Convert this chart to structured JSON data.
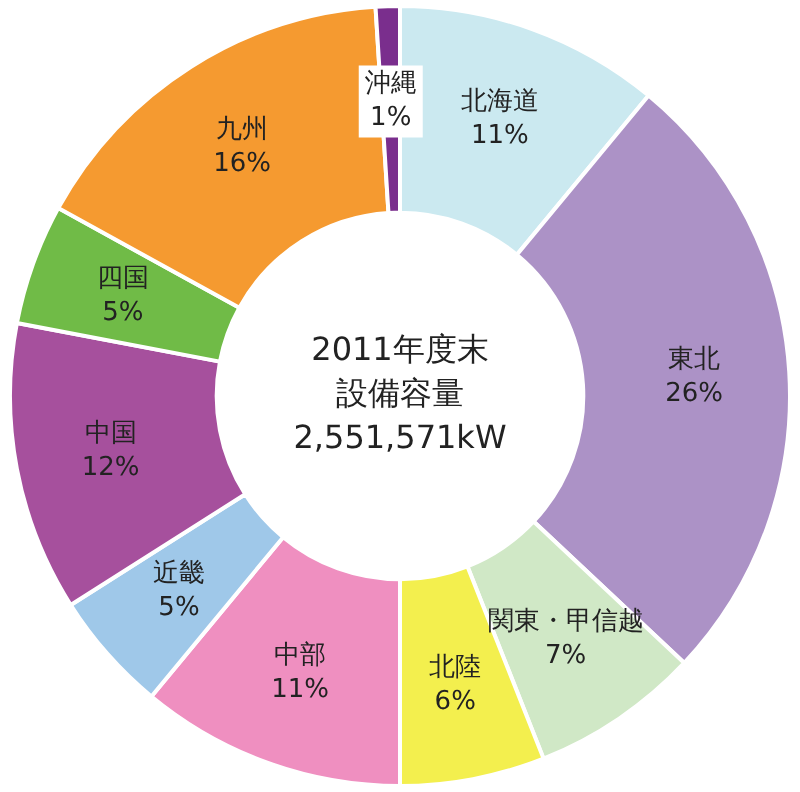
{
  "chart_data": {
    "type": "donut",
    "categories": [
      "北海道",
      "東北",
      "関東・甲信越",
      "北陸",
      "中部",
      "近畿",
      "中国",
      "四国",
      "九州",
      "沖縄"
    ],
    "values": [
      11,
      26,
      7,
      6,
      11,
      5,
      12,
      5,
      16,
      1
    ],
    "colors": [
      "#cbe9f0",
      "#ac92c6",
      "#d0e8c6",
      "#f3ef4e",
      "#ef8fc0",
      "#9fc8e9",
      "#a6509d",
      "#70bb47",
      "#f59a30",
      "#7a2e8d"
    ],
    "value_labels": [
      "11%",
      "26%",
      "7%",
      "6%",
      "11%",
      "5%",
      "12%",
      "5%",
      "16%",
      "1%"
    ],
    "annotations": [
      "2011年度末",
      "設備容量",
      "2,551,571kW"
    ],
    "legend": false
  }
}
